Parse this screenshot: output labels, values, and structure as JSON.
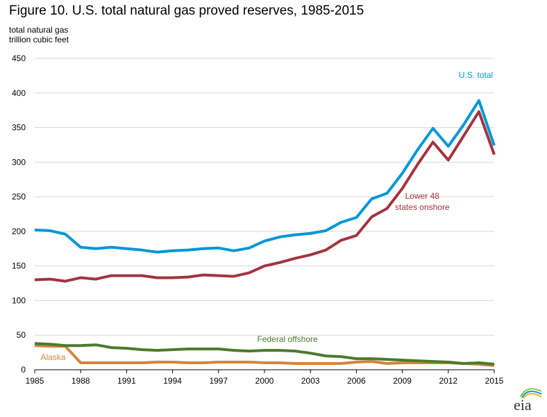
{
  "title": "Figure 10. U.S. total natural gas proved reserves, 1985-2015",
  "y_unit_line1": "total natural gas",
  "y_unit_line2": "trillion cubic feet",
  "logo_text": "eia",
  "chart_data": {
    "type": "line",
    "x": [
      1985,
      1986,
      1987,
      1988,
      1989,
      1990,
      1991,
      1992,
      1993,
      1994,
      1995,
      1996,
      1997,
      1998,
      1999,
      2000,
      2001,
      2002,
      2003,
      2004,
      2005,
      2006,
      2007,
      2008,
      2009,
      2010,
      2011,
      2012,
      2013,
      2014,
      2015
    ],
    "xlim": [
      1985,
      2015
    ],
    "xticks": [
      1985,
      1988,
      1991,
      1994,
      1997,
      2000,
      2003,
      2006,
      2009,
      2012,
      2015
    ],
    "ylim": [
      0,
      450
    ],
    "yticks": [
      0,
      50,
      100,
      150,
      200,
      250,
      300,
      350,
      400,
      450
    ],
    "grid": "horizontal",
    "series": [
      {
        "name": "U.S. total",
        "color": "#0096d7",
        "values": [
          202,
          201,
          196,
          177,
          175,
          177,
          175,
          173,
          170,
          172,
          173,
          175,
          176,
          172,
          176,
          186,
          192,
          195,
          197,
          201,
          213,
          220,
          247,
          255,
          284,
          318,
          349,
          323,
          354,
          389,
          324
        ]
      },
      {
        "name": "Lower 48 states onshore",
        "color": "#a33340",
        "values": [
          130,
          131,
          128,
          133,
          131,
          136,
          136,
          136,
          133,
          133,
          134,
          137,
          136,
          135,
          140,
          150,
          155,
          161,
          166,
          173,
          187,
          194,
          221,
          233,
          262,
          297,
          329,
          303,
          338,
          373,
          311
        ]
      },
      {
        "name": "Federal offshore",
        "color": "#4b7a2c",
        "values": [
          38,
          37,
          35,
          35,
          36,
          32,
          31,
          29,
          28,
          29,
          30,
          30,
          30,
          28,
          27,
          28,
          28,
          27,
          24,
          20,
          19,
          16,
          16,
          15,
          14,
          13,
          12,
          11,
          9,
          10,
          8
        ]
      },
      {
        "name": "Alaska",
        "color": "#d2863a",
        "values": [
          35,
          34,
          34,
          10,
          10,
          10,
          10,
          10,
          11,
          11,
          10,
          10,
          11,
          11,
          11,
          10,
          10,
          9,
          9,
          9,
          9,
          11,
          12,
          9,
          10,
          10,
          10,
          10,
          9,
          8,
          6
        ]
      }
    ],
    "labels": [
      {
        "text": "U.S. total",
        "x": 2013.8,
        "y": 422,
        "color": "#0096d7"
      },
      {
        "text": "Lower 48",
        "x": 2010.3,
        "y": 247,
        "color": "#a33340"
      },
      {
        "text": "states onshore",
        "x": 2010.3,
        "y": 231,
        "color": "#a33340"
      },
      {
        "text": "Federal offshore",
        "x": 2001.5,
        "y": 40,
        "color": "#4b7a2c"
      },
      {
        "text": "Alaska",
        "x": 1986.2,
        "y": 14,
        "color": "#d2863a"
      }
    ]
  }
}
